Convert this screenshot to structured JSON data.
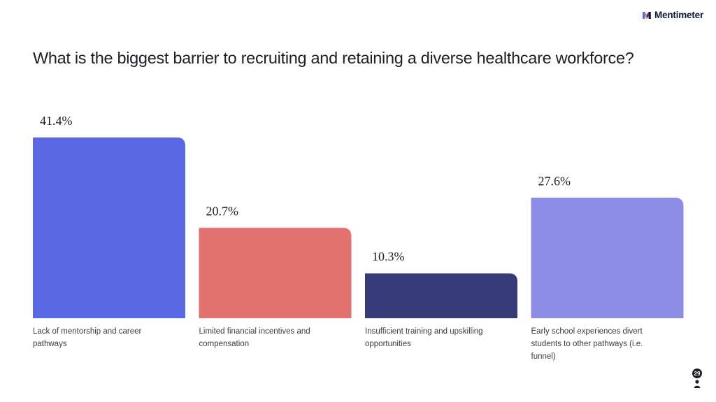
{
  "brand": {
    "name": "Mentimeter",
    "icon": "mentimeter-logo-icon"
  },
  "question": "What is the biggest barrier to recruiting and retaining a diverse healthcare workforce?",
  "participants": {
    "count": "29",
    "icon": "person-icon"
  },
  "chart_data": {
    "type": "bar",
    "categories": [
      "Lack of mentorship and career pathways",
      "Limited financial incentives and compensation",
      "Insufficient training and upskilling opportunities",
      "Early school experiences divert students to other pathways (i.e. funnel)"
    ],
    "values": [
      41.4,
      20.7,
      10.3,
      27.6
    ],
    "value_labels": [
      "41.4%",
      "20.7%",
      "10.3%",
      "27.6%"
    ],
    "colors": [
      "#5b68e3",
      "#e3716f",
      "#373c79",
      "#8b8ce6"
    ],
    "title": "What is the biggest barrier to recruiting and retaining a diverse healthcare workforce?",
    "xlabel": "",
    "ylabel": "",
    "ylim": [
      0,
      41.4
    ],
    "grid": false,
    "legend": "none"
  }
}
